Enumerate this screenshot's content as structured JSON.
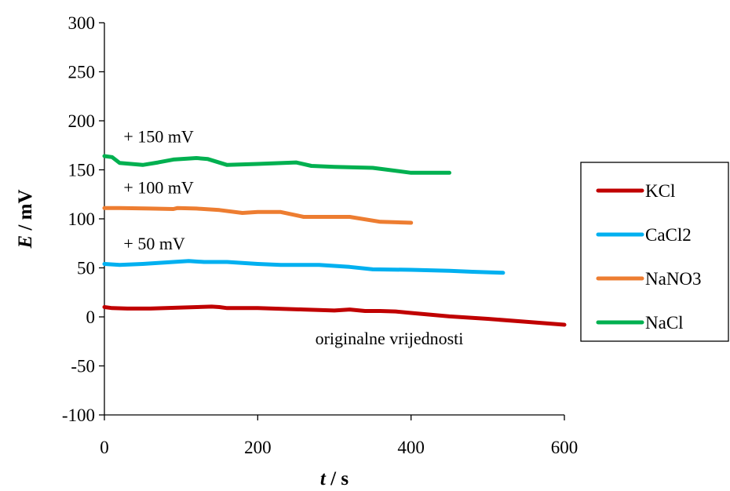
{
  "chart_data": {
    "type": "line",
    "title": "",
    "xlabel": {
      "symbol": "t",
      "unit": " / s"
    },
    "ylabel": {
      "symbol": "E",
      "unit": " / mV"
    },
    "xlim": [
      0,
      600
    ],
    "ylim": [
      -100,
      300
    ],
    "xticks": [
      "0",
      "200",
      "400",
      "600"
    ],
    "yticks": [
      "-100",
      "-50",
      "0",
      "50",
      "100",
      "150",
      "200",
      "250",
      "300"
    ],
    "grid": false,
    "legend_position": "right",
    "series": [
      {
        "name": "KCl",
        "color": "#c00000",
        "x": [
          0,
          10,
          30,
          60,
          100,
          140,
          150,
          160,
          200,
          260,
          300,
          320,
          340,
          360,
          380,
          400,
          450,
          500,
          550,
          600
        ],
        "y": [
          10,
          9,
          8.5,
          8.5,
          9.5,
          10.5,
          10,
          9,
          9,
          7.5,
          6.5,
          7.5,
          6,
          6,
          5.5,
          4,
          0.5,
          -2,
          -5,
          -8
        ]
      },
      {
        "name": "CaCl2",
        "color": "#00b0f0",
        "x": [
          0,
          20,
          50,
          80,
          110,
          130,
          160,
          200,
          230,
          260,
          280,
          320,
          350,
          400,
          450,
          480,
          520
        ],
        "y": [
          54,
          53,
          54,
          55.5,
          57,
          56,
          56,
          54,
          53,
          53,
          53,
          51,
          48.5,
          48,
          47,
          46,
          45
        ]
      },
      {
        "name": "NaNO3",
        "color": "#ed7d31",
        "x": [
          0,
          20,
          60,
          90,
          95,
          120,
          150,
          180,
          200,
          230,
          260,
          300,
          320,
          360,
          400
        ],
        "y": [
          111,
          111,
          110.5,
          110,
          111,
          110.5,
          109,
          106,
          107,
          107,
          102,
          102,
          102,
          97,
          96
        ]
      },
      {
        "name": "NaCl",
        "color": "#00b050",
        "x": [
          0,
          10,
          20,
          50,
          70,
          90,
          120,
          135,
          160,
          200,
          250,
          270,
          300,
          350,
          400,
          450
        ],
        "y": [
          164,
          163,
          157,
          155,
          157.5,
          160.5,
          162,
          161,
          155,
          156,
          157.5,
          154,
          153,
          152,
          147,
          147
        ]
      }
    ],
    "annotations": [
      {
        "text": "+ 150 mV",
        "x": 25,
        "y": 178
      },
      {
        "text": "+ 100 mV",
        "x": 25,
        "y": 126
      },
      {
        "text": "+ 50 mV",
        "x": 25,
        "y": 69
      },
      {
        "text": "originalne vrijednosti",
        "x": 275,
        "y": -28
      }
    ]
  }
}
